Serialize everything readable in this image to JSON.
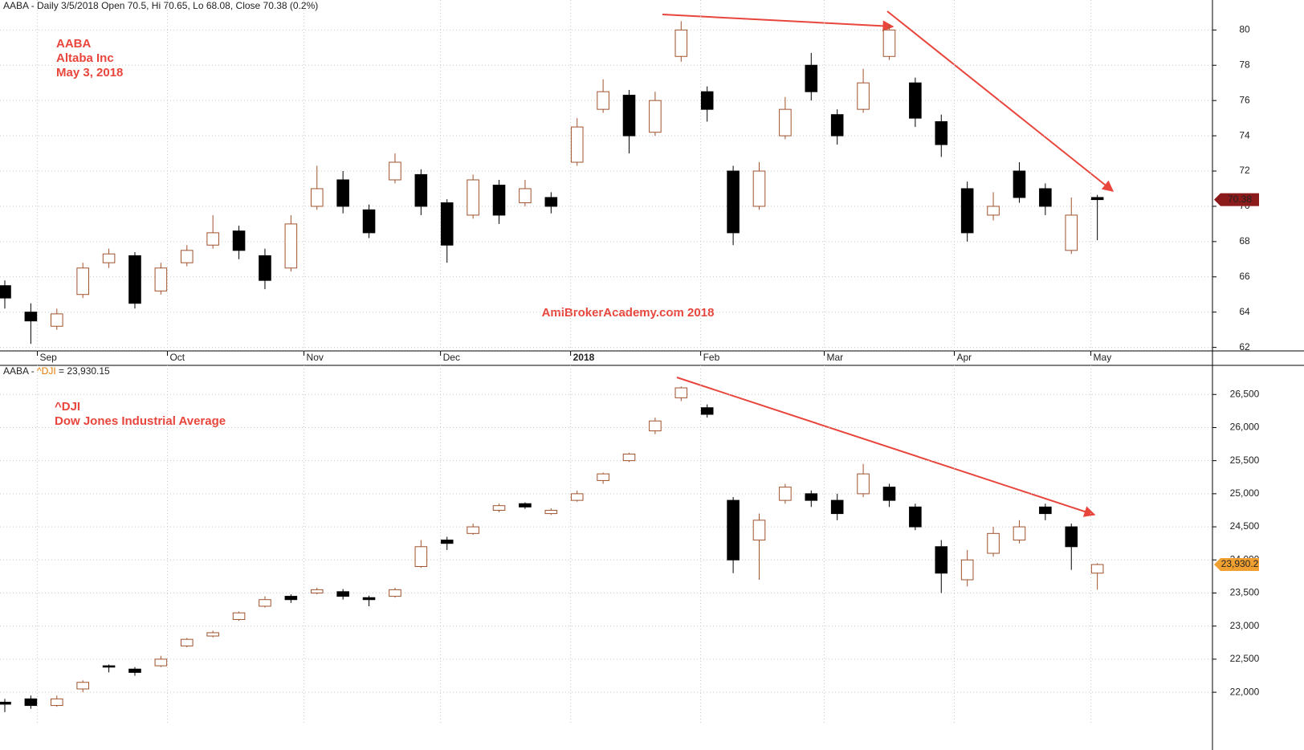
{
  "chart_data": [
    {
      "type": "candlestick",
      "header": "AABA - Daily 3/5/2018 Open 70.5, Hi 70.65, Lo 68.08, Close 70.38 (0.2%)",
      "annotations": [
        "AABA",
        "Altaba Inc",
        "May 3, 2018"
      ],
      "watermark": "AmiBrokerAcademy.com  2018",
      "x": [
        0,
        4,
        8,
        12,
        16,
        20,
        24,
        28,
        32,
        36,
        40,
        44,
        48,
        52,
        56,
        60,
        64,
        68,
        72,
        76,
        80,
        84,
        88,
        92,
        96,
        100,
        104,
        108,
        112,
        116,
        120,
        124,
        128,
        132,
        136,
        140,
        144,
        148,
        152,
        156,
        160,
        164,
        168
      ],
      "open": [
        65.5,
        64.0,
        63.2,
        65.0,
        66.8,
        67.2,
        65.2,
        66.8,
        67.8,
        68.6,
        67.2,
        66.5,
        70.0,
        71.5,
        69.8,
        71.5,
        71.8,
        70.2,
        69.5,
        71.2,
        70.2,
        70.5,
        72.5,
        75.5,
        76.3,
        74.2,
        78.5,
        76.5,
        72.0,
        70.0,
        74.0,
        78.0,
        75.2,
        75.5,
        78.5,
        77.0,
        74.8,
        71.0,
        69.5,
        72.0,
        71.0,
        67.5,
        70.5
      ],
      "high": [
        65.8,
        64.5,
        64.2,
        66.8,
        67.6,
        67.4,
        66.8,
        67.8,
        69.5,
        68.9,
        67.6,
        69.5,
        72.3,
        72.0,
        70.1,
        73.0,
        72.1,
        70.4,
        71.8,
        71.5,
        71.5,
        70.8,
        75.0,
        77.2,
        76.6,
        76.5,
        80.5,
        76.8,
        72.3,
        72.5,
        76.2,
        78.7,
        75.5,
        77.8,
        80.3,
        77.3,
        75.2,
        71.4,
        70.8,
        72.5,
        71.3,
        70.5,
        70.65
      ],
      "low": [
        64.2,
        62.2,
        63.0,
        64.8,
        66.5,
        64.2,
        65.0,
        66.6,
        67.6,
        67.0,
        65.3,
        66.3,
        69.8,
        69.6,
        68.2,
        71.3,
        69.5,
        66.8,
        69.3,
        69.0,
        70.0,
        69.6,
        72.3,
        75.3,
        73.0,
        74.0,
        78.2,
        74.8,
        67.8,
        69.8,
        73.8,
        76.0,
        73.5,
        75.3,
        78.3,
        74.5,
        72.8,
        68.0,
        69.2,
        70.2,
        69.5,
        67.3,
        68.08
      ],
      "close": [
        64.8,
        63.5,
        63.9,
        66.5,
        67.3,
        64.5,
        66.5,
        67.5,
        68.5,
        67.5,
        65.8,
        69.0,
        71.0,
        70.0,
        68.5,
        72.5,
        70.0,
        67.8,
        71.5,
        69.5,
        71.0,
        70.0,
        74.5,
        76.5,
        74.0,
        76.0,
        80.0,
        75.5,
        68.5,
        72.0,
        75.5,
        76.5,
        74.0,
        77.0,
        80.0,
        75.0,
        73.5,
        68.5,
        70.0,
        70.5,
        70.0,
        69.5,
        70.38
      ],
      "last": 70.38,
      "xlim": [
        -0.74,
        185.7
      ],
      "ylim": [
        61.8,
        81.7
      ],
      "yticks": [
        62,
        64,
        66,
        68,
        70,
        72,
        74,
        76,
        78,
        80
      ],
      "xticks": [
        {
          "value": 5,
          "label": "Sep"
        },
        {
          "value": 25,
          "label": "Oct"
        },
        {
          "value": 46,
          "label": "Nov"
        },
        {
          "value": 67,
          "label": "Dec"
        },
        {
          "value": 87,
          "label": "2018"
        },
        {
          "value": 107,
          "label": "Feb"
        },
        {
          "value": 126,
          "label": "Mar"
        },
        {
          "value": 146,
          "label": "Apr"
        },
        {
          "value": 167,
          "label": "May"
        }
      ],
      "up_color": "#a0522d",
      "down_color": "#000000",
      "tag_color": "#8b1a1a"
    },
    {
      "type": "candlestick",
      "header_parts": [
        "AABA - ",
        "^DJI",
        " = 23,930.15"
      ],
      "annotations": [
        "^DJI",
        "Dow Jones Industrial Average"
      ],
      "x": [
        0,
        4,
        8,
        12,
        16,
        20,
        24,
        28,
        32,
        36,
        40,
        44,
        48,
        52,
        56,
        60,
        64,
        68,
        72,
        76,
        80,
        84,
        88,
        92,
        96,
        100,
        104,
        108,
        112,
        116,
        120,
        124,
        128,
        132,
        136,
        140,
        144,
        148,
        152,
        156,
        160,
        164,
        168
      ],
      "open": [
        21850,
        21900,
        21800,
        22050,
        22400,
        22350,
        22400,
        22700,
        22850,
        23100,
        23300,
        23450,
        23500,
        23520,
        23430,
        23450,
        23900,
        24300,
        24400,
        24750,
        24850,
        24700,
        24900,
        25200,
        25500,
        25950,
        26450,
        26300,
        24900,
        24300,
        24900,
        25000,
        24900,
        25000,
        25100,
        24800,
        24200,
        23700,
        24100,
        24300,
        24800,
        24500,
        23800
      ],
      "high": [
        21900,
        21950,
        21950,
        22180,
        22420,
        22380,
        22550,
        22820,
        22930,
        23220,
        23450,
        23480,
        23580,
        23560,
        23460,
        23580,
        24300,
        24350,
        24550,
        24850,
        24870,
        24780,
        25050,
        25320,
        25620,
        26150,
        26620,
        26350,
        24950,
        24700,
        25150,
        25050,
        25000,
        25450,
        25150,
        24850,
        24300,
        24150,
        24500,
        24600,
        24850,
        24550,
        23950
      ],
      "low": [
        21700,
        21750,
        21780,
        22000,
        22300,
        22250,
        22380,
        22680,
        22830,
        23080,
        23280,
        23350,
        23480,
        23400,
        23300,
        23430,
        23880,
        24150,
        24380,
        24720,
        24770,
        24680,
        24880,
        25150,
        25480,
        25900,
        26400,
        26150,
        23800,
        23700,
        24850,
        24800,
        24600,
        24950,
        24800,
        24450,
        23500,
        23600,
        24050,
        24250,
        24600,
        23850,
        23550
      ],
      "close": [
        21820,
        21800,
        21900,
        22150,
        22380,
        22300,
        22500,
        22800,
        22900,
        23200,
        23400,
        23400,
        23550,
        23450,
        23400,
        23550,
        24200,
        24250,
        24500,
        24820,
        24800,
        24750,
        25000,
        25300,
        25600,
        26100,
        26600,
        26200,
        24000,
        24600,
        25100,
        24900,
        24700,
        25300,
        24900,
        24500,
        23800,
        24000,
        24400,
        24500,
        24700,
        24200,
        23930.15
      ],
      "last": {
        "value": 23930.15,
        "label": "23,930.2"
      },
      "xlim": [
        -0.74,
        185.7
      ],
      "ylim": [
        21540,
        26940
      ],
      "yticks": [
        {
          "value": 22000,
          "label": "22,000"
        },
        {
          "value": 22500,
          "label": "22,500"
        },
        {
          "value": 23000,
          "label": "23,000"
        },
        {
          "value": 23500,
          "label": "23,500"
        },
        {
          "value": 24000,
          "label": "24,000"
        },
        {
          "value": 24500,
          "label": "24,500"
        },
        {
          "value": 25000,
          "label": "25,000"
        },
        {
          "value": 25500,
          "label": "25,500"
        },
        {
          "value": 26000,
          "label": "26,000"
        },
        {
          "value": 26500,
          "label": "26,500"
        }
      ],
      "up_color": "#a0522d",
      "down_color": "#000000",
      "tag_color": "#f0a030",
      "header_color": "#e07800"
    }
  ]
}
